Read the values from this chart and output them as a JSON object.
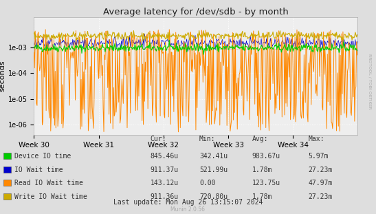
{
  "title": "Average latency for /dev/sdb - by month",
  "ylabel": "seconds",
  "xlabel_ticks": [
    "Week 30",
    "Week 31",
    "Week 32",
    "Week 33",
    "Week 34"
  ],
  "bg_color": "#dedede",
  "plot_bg_color": "#eeeeee",
  "grid_color": "#ffffff",
  "legend_items": [
    {
      "color": "#00cc00",
      "label": "Device IO time",
      "cur": "845.46u",
      "min": "342.41u",
      "avg": "983.67u",
      "max": "5.97m"
    },
    {
      "color": "#0000cc",
      "label": "IO Wait time",
      "cur": "911.37u",
      "min": "521.99u",
      "avg": "1.78m",
      "max": "27.23m"
    },
    {
      "color": "#ff8800",
      "label": "Read IO Wait time",
      "cur": "143.12u",
      "min": "0.00",
      "avg": "123.75u",
      "max": "47.97m"
    },
    {
      "color": "#ccaa00",
      "label": "Write IO Wait time",
      "cur": "911.36u",
      "min": "720.80u",
      "avg": "1.78m",
      "max": "27.23m"
    }
  ],
  "footer": "Last update: Mon Aug 26 13:15:07 2024",
  "munin_version": "Munin 2.0.56",
  "rrdtool_label": "RRDTOOL / TOBI OETIKER",
  "n_points": 500,
  "week_positions": [
    0,
    100,
    200,
    300,
    400
  ],
  "figsize": [
    5.47,
    3.11
  ],
  "dpi": 100
}
